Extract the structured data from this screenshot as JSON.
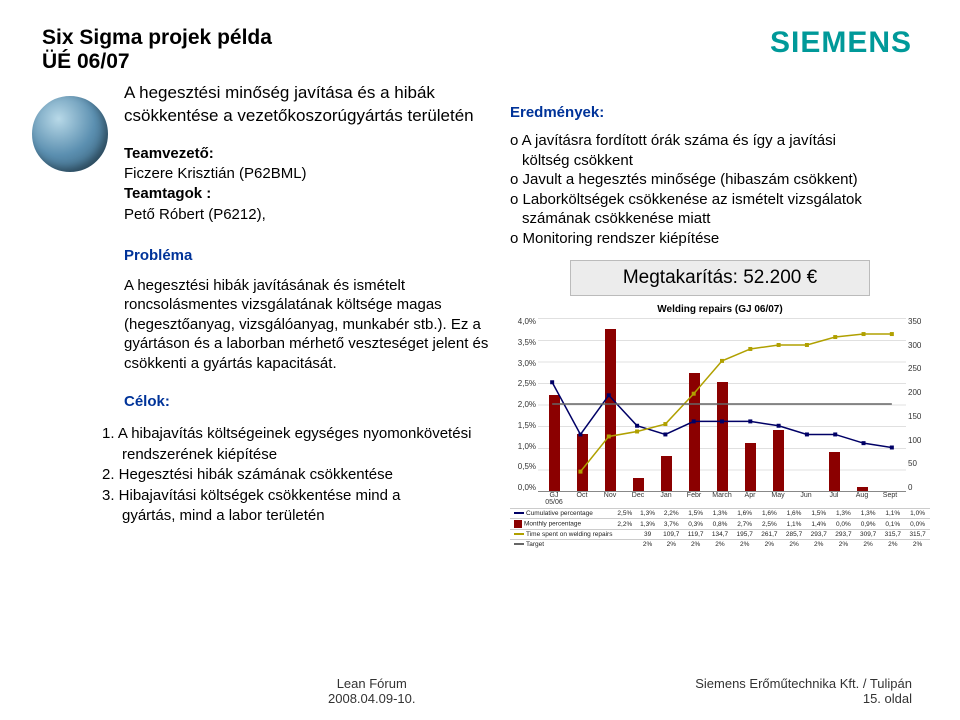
{
  "header": {
    "title": "Six Sigma projek példa",
    "subtitle": "ÜÉ 06/07",
    "logo": "SIEMENS"
  },
  "left": {
    "main_heading": "A hegesztési minőség javítása és a hibák csökkentése a vezetőkoszorúgyártás területén",
    "team_leader_label": "Teamvezető:",
    "team_leader": "Ficzere Krisztián (P62BML)",
    "team_members_label": "Teamtagok :",
    "team_members": "Pető Róbert (P6212),",
    "problem_label": "Probléma",
    "problem_text": "A hegesztési hibák javításának és ismételt roncsolásmentes vizsgálatának költsége magas (hegesztőanyag, vizsgálóanyag, munkabér stb.). Ez a gyártáson és a laborban mérhető veszteséget jelent és csökkenti a gyártás kapacitását.",
    "goals_label": "Célok:",
    "goals": [
      "1. A hibajavítás költségeinek egységes nyomonkövetési",
      "rendszerének kiépítése",
      "2. Hegesztési hibák számának csökkentése",
      "3. Hibajavítási költségek csökkentése mind a",
      "gyártás, mind a labor területén"
    ]
  },
  "right": {
    "results_label": "Eredmények:",
    "results": [
      "o A javításra fordított órák száma és így a javítási",
      "költség csökkent",
      "o Javult a hegesztés minősége (hibaszám csökkent)",
      "o Laborköltségek csökkenése az ismételt vizsgálatok",
      "számának csökkenése miatt",
      "o Monitoring rendszer kiépítése"
    ],
    "savings": "Megtakarítás:  52.200 €"
  },
  "chart": {
    "title": "Welding repairs (GJ 06/07)",
    "y_left_ticks": [
      "4,0%",
      "3,5%",
      "3,0%",
      "2,5%",
      "2,0%",
      "1,5%",
      "1,0%",
      "0,5%",
      "0,0%"
    ],
    "y_left_max": 4.0,
    "y_right_ticks": [
      "350",
      "300",
      "250",
      "200",
      "150",
      "100",
      "50",
      "0"
    ],
    "y_right_max": 350,
    "x_labels": [
      "GJ 05/06",
      "Oct",
      "Nov",
      "Dec",
      "Jan",
      "Febr",
      "March",
      "Apr",
      "May",
      "Jun",
      "Jul",
      "Aug",
      "Sept"
    ],
    "bars_pct": [
      2.2,
      1.3,
      3.7,
      0.3,
      0.8,
      2.7,
      2.5,
      1.1,
      1.4,
      0.0,
      0.9,
      0.1,
      0.0
    ],
    "line_cum": [
      2.5,
      1.3,
      2.2,
      1.5,
      1.3,
      1.6,
      1.6,
      1.6,
      1.5,
      1.3,
      1.3,
      1.1,
      1.0
    ],
    "line_time": [
      39,
      109.7,
      119.7,
      134.7,
      195.7,
      261.7,
      285.7,
      293.7,
      293.7,
      309.7,
      315.7,
      315.7
    ],
    "line_target": [
      2,
      2,
      2,
      2,
      2,
      2,
      2,
      2,
      2,
      2,
      2,
      2,
      2
    ],
    "bar_color": "#8b0000",
    "cum_color": "#000066",
    "time_color": "#b0a000",
    "target_color": "#666666",
    "table_rows": [
      {
        "label": "Cumulative percentage",
        "color": "#000066",
        "type": "line",
        "vals": [
          "2,5%",
          "1,3%",
          "2,2%",
          "1,5%",
          "1,3%",
          "1,6%",
          "1,6%",
          "1,6%",
          "1,5%",
          "1,3%",
          "1,3%",
          "1,1%",
          "1,0%"
        ]
      },
      {
        "label": "Monthly percentage",
        "color": "#8b0000",
        "type": "bar",
        "vals": [
          "2,2%",
          "1,3%",
          "3,7%",
          "0,3%",
          "0,8%",
          "2,7%",
          "2,5%",
          "1,1%",
          "1,4%",
          "0,0%",
          "0,9%",
          "0,1%",
          "0,0%"
        ]
      },
      {
        "label": "Time spent on welding repairs",
        "color": "#b0a000",
        "type": "line",
        "vals": [
          "",
          "39",
          "109,7",
          "119,7",
          "134,7",
          "195,7",
          "261,7",
          "285,7",
          "293,7",
          "293,7",
          "309,7",
          "315,7",
          "315,7"
        ]
      },
      {
        "label": "Target",
        "color": "#666666",
        "type": "line",
        "vals": [
          "",
          "2%",
          "2%",
          "2%",
          "2%",
          "2%",
          "2%",
          "2%",
          "2%",
          "2%",
          "2%",
          "2%",
          "2%"
        ]
      }
    ]
  },
  "footer": {
    "left_line1": "Lean Fórum",
    "left_line2": "2008.04.09-10.",
    "right_line1": "Siemens Erőműtechnika Kft. / Tulipán",
    "right_line2": "15. oldal"
  }
}
